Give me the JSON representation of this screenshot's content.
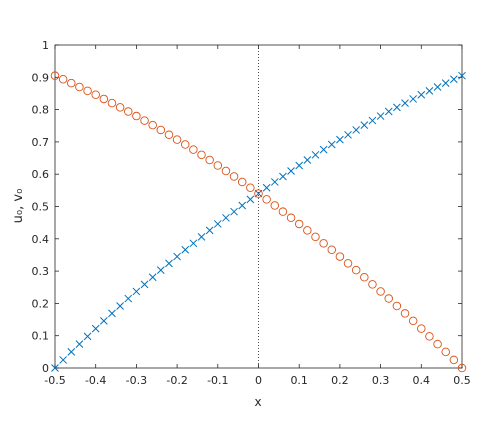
{
  "chart_data": {
    "type": "scatter",
    "xlabel": "x",
    "ylabel": "u₀, v₀",
    "x": [
      -0.5,
      -0.48,
      -0.46,
      -0.44,
      -0.42,
      -0.4,
      -0.38,
      -0.36,
      -0.34,
      -0.32,
      -0.3,
      -0.28,
      -0.26,
      -0.24,
      -0.22,
      -0.2,
      -0.18,
      -0.16,
      -0.14,
      -0.12,
      -0.1,
      -0.08,
      -0.06,
      -0.04,
      -0.02,
      0,
      0.02,
      0.04,
      0.06,
      0.08,
      0.1,
      0.12,
      0.14,
      0.16,
      0.18,
      0.2,
      0.22,
      0.24,
      0.26,
      0.28,
      0.3,
      0.32,
      0.34,
      0.36,
      0.38,
      0.4,
      0.42,
      0.44,
      0.46,
      0.48,
      0.5
    ],
    "series": [
      {
        "color": "#0072BD",
        "marker": "x",
        "values": [
          0,
          0.025,
          0.05,
          0.074,
          0.098,
          0.122,
          0.146,
          0.169,
          0.192,
          0.215,
          0.237,
          0.259,
          0.281,
          0.303,
          0.324,
          0.345,
          0.366,
          0.386,
          0.406,
          0.426,
          0.446,
          0.465,
          0.484,
          0.503,
          0.522,
          0.54,
          0.558,
          0.576,
          0.593,
          0.61,
          0.627,
          0.644,
          0.66,
          0.676,
          0.692,
          0.707,
          0.722,
          0.737,
          0.752,
          0.766,
          0.78,
          0.794,
          0.807,
          0.82,
          0.833,
          0.846,
          0.858,
          0.87,
          0.882,
          0.894,
          0.905
        ]
      },
      {
        "color": "#D95319",
        "marker": "o",
        "values": [
          0.905,
          0.894,
          0.882,
          0.87,
          0.858,
          0.846,
          0.833,
          0.82,
          0.807,
          0.794,
          0.78,
          0.766,
          0.752,
          0.737,
          0.722,
          0.707,
          0.692,
          0.676,
          0.66,
          0.644,
          0.627,
          0.61,
          0.593,
          0.576,
          0.558,
          0.54,
          0.522,
          0.503,
          0.484,
          0.465,
          0.446,
          0.426,
          0.406,
          0.386,
          0.366,
          0.345,
          0.324,
          0.303,
          0.281,
          0.259,
          0.237,
          0.215,
          0.192,
          0.169,
          0.146,
          0.122,
          0.098,
          0.074,
          0.05,
          0.025,
          0
        ]
      }
    ],
    "xlim": [
      -0.5,
      0.5
    ],
    "xticks": [
      -0.5,
      -0.4,
      -0.3,
      -0.2,
      -0.1,
      0,
      0.1,
      0.2,
      0.3,
      0.4,
      0.5
    ],
    "ylim": [
      0,
      1
    ],
    "yticks": [
      0,
      0.1,
      0.2,
      0.3,
      0.4,
      0.5,
      0.6,
      0.7,
      0.8,
      0.9,
      1
    ],
    "vlines": [
      0
    ]
  }
}
